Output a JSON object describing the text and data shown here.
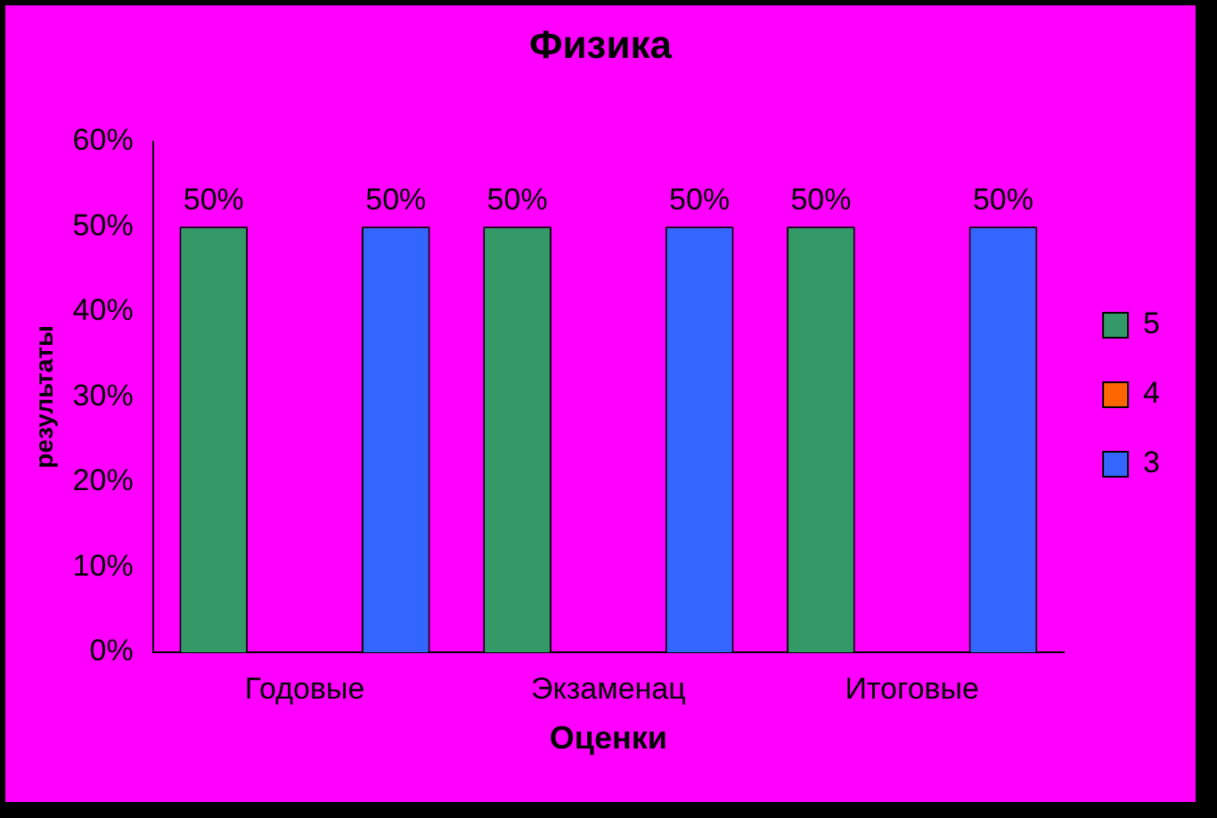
{
  "chart_data": {
    "type": "bar",
    "title": "Физика",
    "xlabel": "Оценки",
    "ylabel": "результаты",
    "categories": [
      "Годовые",
      "Экзаменац",
      "Итоговые"
    ],
    "series": [
      {
        "name": "5",
        "color": "#339966",
        "values": [
          50,
          50,
          50
        ],
        "value_labels": [
          "50%",
          "50%",
          "50%"
        ]
      },
      {
        "name": "4",
        "color": "#ff6600",
        "values": [
          null,
          null,
          null
        ]
      },
      {
        "name": "3",
        "color": "#3366ff",
        "values": [
          50,
          50,
          50
        ],
        "value_labels": [
          "50%",
          "50%",
          "50%"
        ]
      }
    ],
    "ylim": [
      0,
      60
    ],
    "yticks": [
      {
        "value": 0,
        "label": "0%"
      },
      {
        "value": 10,
        "label": "10%"
      },
      {
        "value": 20,
        "label": "20%"
      },
      {
        "value": 30,
        "label": "30%"
      },
      {
        "value": 40,
        "label": "40%"
      },
      {
        "value": 50,
        "label": "50%"
      },
      {
        "value": 60,
        "label": "60%"
      }
    ],
    "grid": false,
    "legend": "right"
  }
}
